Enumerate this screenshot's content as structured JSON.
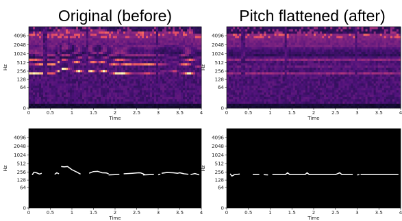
{
  "titles": {
    "left": "Original (before)",
    "right": "Pitch flattened (after)"
  },
  "chart_data": [
    {
      "type": "heatmap",
      "panel": "original-spectrogram",
      "xlabel": "Time",
      "ylabel": "Hz",
      "xlim": [
        0,
        4
      ],
      "yscale": "log2",
      "x_ticks": [
        "0",
        "0.5",
        "1",
        "1.5",
        "2",
        "2.5",
        "3",
        "3.5",
        "4"
      ],
      "y_ticks": [
        "0",
        "64",
        "128",
        "256",
        "512",
        "1024",
        "2048",
        "4096"
      ],
      "colormap": "magma",
      "pitch_contour": [
        {
          "x": 0.1,
          "y": 215
        },
        {
          "x": 0.3,
          "y": 225
        },
        {
          "x": 0.6,
          "y": 230
        },
        {
          "x": 0.8,
          "y": 320
        },
        {
          "x": 1.0,
          "y": 290
        },
        {
          "x": 1.3,
          "y": 240
        },
        {
          "x": 1.6,
          "y": 290
        },
        {
          "x": 1.9,
          "y": 235
        },
        {
          "x": 2.1,
          "y": 215
        },
        {
          "x": 2.4,
          "y": 235
        },
        {
          "x": 2.8,
          "y": 230
        },
        {
          "x": 3.1,
          "y": 240
        },
        {
          "x": 3.4,
          "y": 250
        },
        {
          "x": 3.6,
          "y": 230
        },
        {
          "x": 3.9,
          "y": 200
        }
      ]
    },
    {
      "type": "line",
      "panel": "original-pitch",
      "xlabel": "Time",
      "ylabel": "Hz",
      "xlim": [
        0,
        4
      ],
      "yscale": "log2",
      "x_ticks": [
        "0",
        "0.5",
        "1",
        "1.5",
        "2",
        "2.5",
        "3",
        "3.5",
        "4"
      ],
      "y_ticks": [
        "0",
        "64",
        "128",
        "256",
        "512",
        "1024",
        "2048",
        "4096"
      ],
      "series": [
        {
          "segments": [
            [
              [
                0.08,
                200
              ],
              [
                0.12,
                250
              ],
              [
                0.18,
                240
              ],
              [
                0.25,
                215
              ],
              [
                0.3,
                230
              ]
            ],
            [
              [
                0.6,
                210
              ],
              [
                0.65,
                240
              ],
              [
                0.7,
                220
              ]
            ],
            [
              [
                0.75,
                400
              ],
              [
                0.82,
                390
              ],
              [
                0.9,
                400
              ],
              [
                1.0,
                310
              ],
              [
                1.1,
                260
              ],
              [
                1.2,
                215
              ]
            ],
            [
              [
                1.4,
                230
              ],
              [
                1.5,
                265
              ],
              [
                1.6,
                270
              ],
              [
                1.7,
                240
              ],
              [
                1.8,
                235
              ],
              [
                1.85,
                220
              ]
            ],
            [
              [
                1.85,
                200
              ],
              [
                2.0,
                205
              ],
              [
                2.1,
                210
              ]
            ],
            [
              [
                2.2,
                220
              ],
              [
                2.4,
                230
              ],
              [
                2.55,
                240
              ],
              [
                2.6,
                235
              ],
              [
                2.65,
                220
              ],
              [
                2.7,
                200
              ]
            ],
            [
              [
                2.65,
                200
              ],
              [
                2.8,
                205
              ],
              [
                2.9,
                205
              ]
            ],
            [
              [
                3.0,
                200
              ],
              [
                3.05,
                215
              ]
            ],
            [
              [
                3.08,
                230
              ],
              [
                3.2,
                245
              ],
              [
                3.35,
                240
              ],
              [
                3.45,
                230
              ],
              [
                3.5,
                240
              ],
              [
                3.6,
                220
              ],
              [
                3.7,
                210
              ]
            ],
            [
              [
                3.75,
                205
              ],
              [
                3.85,
                225
              ],
              [
                3.95,
                200
              ]
            ]
          ]
        }
      ]
    },
    {
      "type": "heatmap",
      "panel": "flattened-spectrogram",
      "xlabel": "Time",
      "ylabel": "Hz",
      "xlim": [
        0,
        4
      ],
      "yscale": "log2",
      "x_ticks": [
        "0",
        "0.5",
        "1",
        "1.5",
        "2",
        "2.5",
        "3",
        "3.5",
        "4"
      ],
      "y_ticks": [
        "0",
        "64",
        "128",
        "256",
        "512",
        "1024",
        "2048",
        "4096"
      ],
      "colormap": "magma",
      "pitch_contour": [
        {
          "x": 0.1,
          "y": 205
        },
        {
          "x": 4.0,
          "y": 205
        }
      ]
    },
    {
      "type": "line",
      "panel": "flattened-pitch",
      "xlabel": "Time",
      "ylabel": "Hz",
      "xlim": [
        0,
        4
      ],
      "yscale": "log2",
      "x_ticks": [
        "0",
        "0.5",
        "1",
        "1.5",
        "2",
        "2.5",
        "3",
        "3.5",
        "4"
      ],
      "y_ticks": [
        "0",
        "64",
        "128",
        "256",
        "512",
        "1024",
        "2048",
        "4096"
      ],
      "series": [
        {
          "segments": [
            [
              [
                0.08,
                220
              ],
              [
                0.12,
                180
              ],
              [
                0.18,
                205
              ],
              [
                0.25,
                210
              ],
              [
                0.3,
                215
              ]
            ],
            [
              [
                0.6,
                205
              ],
              [
                0.75,
                205
              ]
            ],
            [
              [
                0.85,
                205
              ],
              [
                0.95,
                200
              ]
            ],
            [
              [
                1.05,
                205
              ],
              [
                1.35,
                205
              ],
              [
                1.4,
                240
              ],
              [
                1.45,
                205
              ],
              [
                1.8,
                205
              ],
              [
                1.85,
                240
              ],
              [
                1.9,
                205
              ],
              [
                2.5,
                205
              ],
              [
                2.6,
                240
              ],
              [
                2.65,
                205
              ],
              [
                2.9,
                205
              ]
            ],
            [
              [
                3.0,
                200
              ],
              [
                3.05,
                205
              ]
            ],
            [
              [
                3.08,
                205
              ],
              [
                3.95,
                205
              ]
            ]
          ]
        }
      ]
    }
  ]
}
